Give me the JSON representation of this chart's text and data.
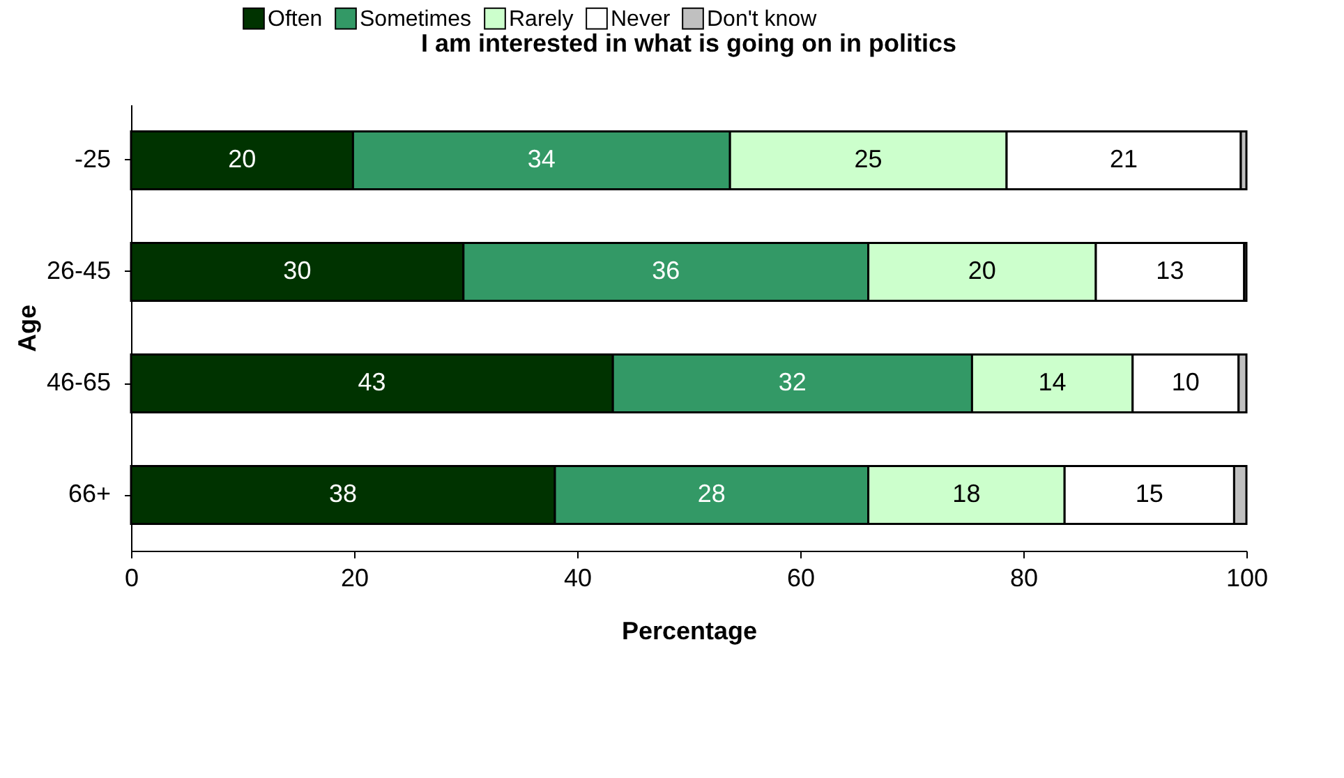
{
  "chart_data": {
    "type": "bar",
    "orientation": "horizontal",
    "stacked": true,
    "title": "I am interested in what is going on in politics",
    "xlabel": "Percentage",
    "ylabel": "Age",
    "categories": [
      "-25",
      "26-45",
      "46-65",
      "66+"
    ],
    "series": [
      {
        "name": "Often",
        "color": "#003300",
        "values": [
          19.9,
          29.8,
          43.2,
          38.0
        ],
        "value_labels": [
          "20",
          "30",
          "43",
          "38"
        ]
      },
      {
        "name": "Sometimes",
        "color": "#339966",
        "values": [
          33.8,
          36.3,
          32.2,
          28.1
        ],
        "value_labels": [
          "34",
          "36",
          "32",
          "28"
        ]
      },
      {
        "name": "Rarely",
        "color": "#ccffcc",
        "values": [
          24.8,
          20.4,
          14.4,
          17.6
        ],
        "value_labels": [
          "25",
          "20",
          "14",
          "18"
        ]
      },
      {
        "name": "Never",
        "color": "#ffffff",
        "values": [
          21.0,
          13.3,
          9.5,
          15.2
        ],
        "value_labels": [
          "21",
          "13",
          "10",
          "15"
        ]
      },
      {
        "name": "Don't know",
        "color": "#c0c0c0",
        "values": [
          0.5,
          0.2,
          0.7,
          1.1
        ],
        "value_labels": [
          null,
          null,
          null,
          null
        ]
      }
    ],
    "xlim": [
      0,
      100
    ],
    "xticks": [
      0,
      20,
      40,
      60,
      80,
      100
    ],
    "grid": false,
    "legend": "top"
  }
}
